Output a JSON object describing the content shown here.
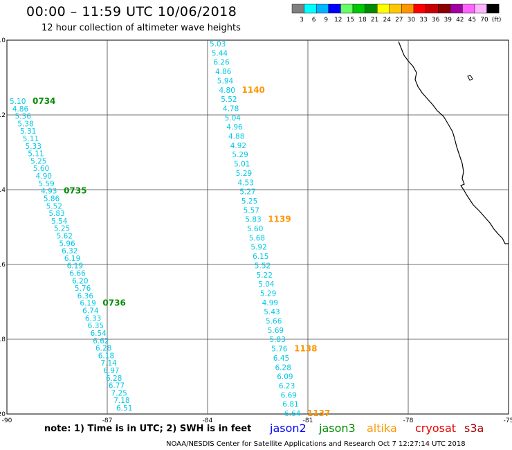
{
  "title": "00:00 – 11:59 UTC 10/06/2018",
  "subtitle": "12 hour collection of altimeter wave heights",
  "colorbar": {
    "colors": [
      "#7f7f7f",
      "#00ffff",
      "#00b4ff",
      "#0000ff",
      "#64ff64",
      "#00c800",
      "#008c00",
      "#ffff00",
      "#ffc800",
      "#ff9600",
      "#ff0000",
      "#c80000",
      "#8c0000",
      "#a000a0",
      "#ff64ff",
      "#ffb4ff",
      "#000000"
    ],
    "labels": [
      "3",
      "6",
      "9",
      "12",
      "15",
      "18",
      "21",
      "24",
      "27",
      "30",
      "33",
      "36",
      "39",
      "42",
      "45",
      "70",
      "(ft)"
    ]
  },
  "axes": {
    "lon_labels": [
      "-90",
      "-87",
      "-84",
      "-81",
      "-78",
      "-75"
    ],
    "lat_labels": [
      "10",
      "12",
      "14",
      "16",
      "18",
      "20"
    ]
  },
  "tracks": [
    {
      "values": [
        "5.10",
        "4.86",
        "5.36",
        "5.38",
        "5.31",
        "5.11",
        "5.33",
        "5.11",
        "5.25",
        "5.60",
        "4.90",
        "5.59",
        "4.93",
        "5.86",
        "5.52",
        "5.83",
        "5.54",
        "5.25",
        "5.62",
        "5.96",
        "6.32",
        "6.19",
        "6.19",
        "6.66",
        "6.20",
        "5.76",
        "6.36",
        "6.19",
        "6.74",
        "6.33",
        "6.35",
        "6.54",
        "6.62",
        "6.28",
        "6.18",
        "7.14",
        "6.97",
        "6.28",
        "6.77",
        "7.25",
        "7.18",
        "6.51"
      ],
      "time_labels": [
        {
          "text": "0734",
          "index": 0,
          "color": "#008c00"
        },
        {
          "text": "0735",
          "index": 12,
          "color": "#008c00"
        },
        {
          "text": "0736",
          "index": 27,
          "color": "#008c00"
        }
      ]
    },
    {
      "values": [
        "5.03",
        "5.44",
        "6.26",
        "4.86",
        "5.94",
        "4.80",
        "5.52",
        "4.78",
        "5.04",
        "4.96",
        "4.88",
        "4.92",
        "5.29",
        "5.01",
        "5.29",
        "4.53",
        "5.27",
        "5.25",
        "5.57",
        "5.83",
        "5.60",
        "5.68",
        "5.92",
        "6.15",
        "5.52",
        "5.22",
        "5.04",
        "5.29",
        "4.99",
        "5.43",
        "5.66",
        "5.69",
        "5.83",
        "5.76",
        "6.45",
        "6.28",
        "6.09",
        "6.23",
        "6.69",
        "6.81",
        "6.64"
      ],
      "time_labels": [
        {
          "text": "1140",
          "index": 5,
          "color": "#ff9600"
        },
        {
          "text": "1139",
          "index": 19,
          "color": "#ff9600"
        },
        {
          "text": "1138",
          "index": 33,
          "color": "#ff9600"
        },
        {
          "text": "1137",
          "index": 40,
          "color": "#ff9600"
        }
      ]
    }
  ],
  "note": "note: 1) Time is in UTC; 2) SWH is in feet",
  "legend": [
    {
      "label": "jason2",
      "color": "#0000ff"
    },
    {
      "label": "jason3",
      "color": "#008c00"
    },
    {
      "label": "altika",
      "color": "#ff9600"
    },
    {
      "label": "cryosat",
      "color": "#e60000"
    },
    {
      "label": "s3a",
      "color": "#a00000"
    }
  ],
  "credit": "NOAA/NESDIS Center for Satellite Applications and Research   Oct  7 12:27:14 UTC 2018"
}
